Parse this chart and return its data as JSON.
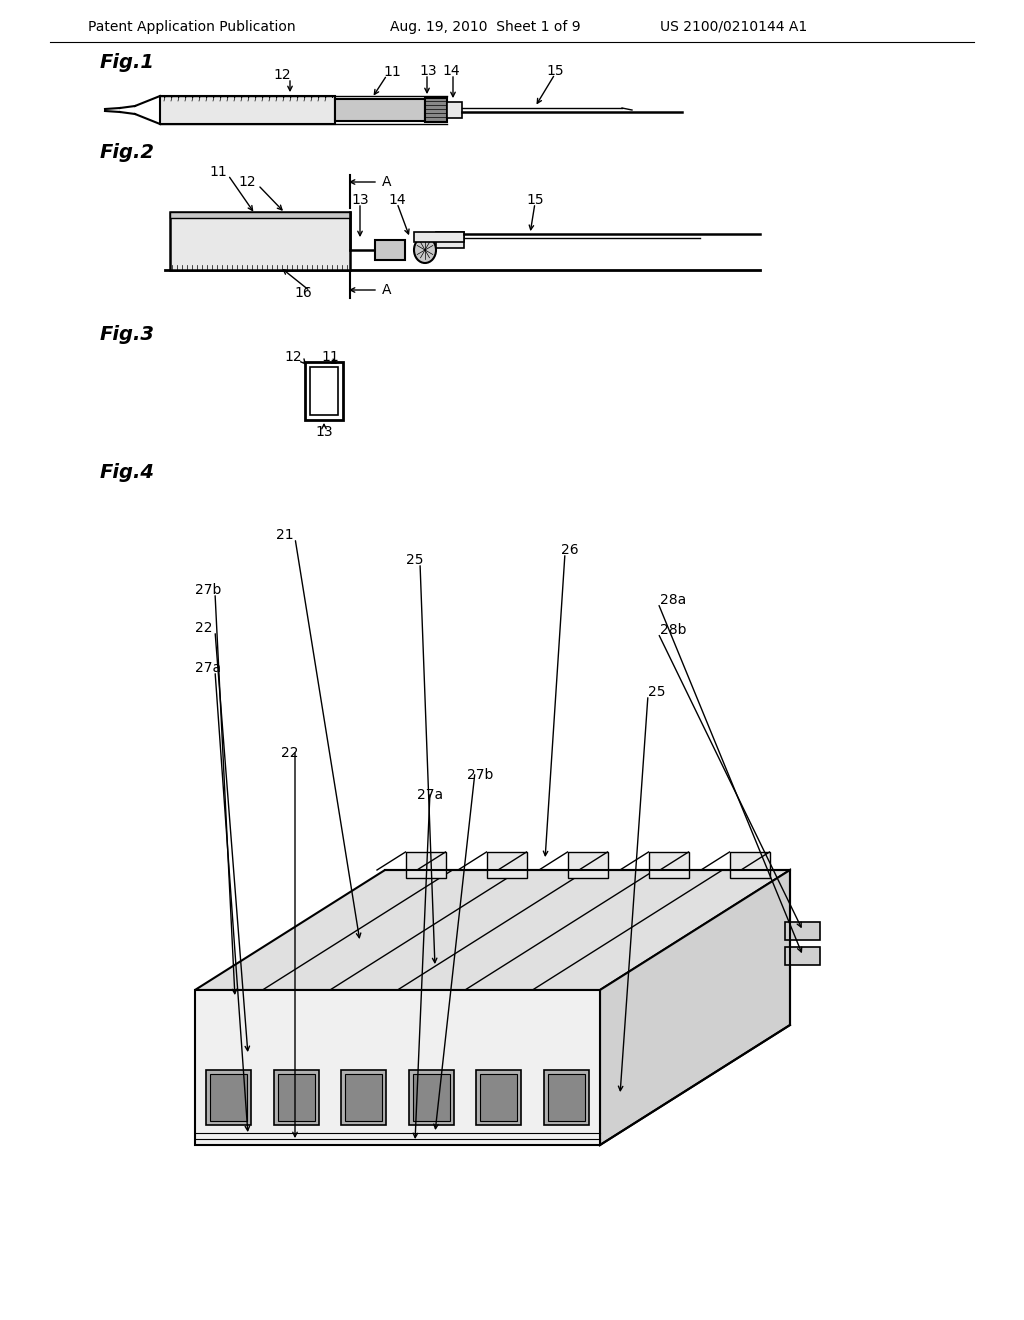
{
  "background_color": "#ffffff",
  "header_left": "Patent Application Publication",
  "header_center": "Aug. 19, 2010  Sheet 1 of 9",
  "header_right": "US 2100/0210144 A1",
  "fig1_label": "Fig.1",
  "fig2_label": "Fig.2",
  "fig3_label": "Fig.3",
  "fig4_label": "Fig.4",
  "lc": "#000000",
  "gray_light": "#e8e8e8",
  "gray_mid": "#c8c8c8",
  "gray_dark": "#a0a0a0"
}
